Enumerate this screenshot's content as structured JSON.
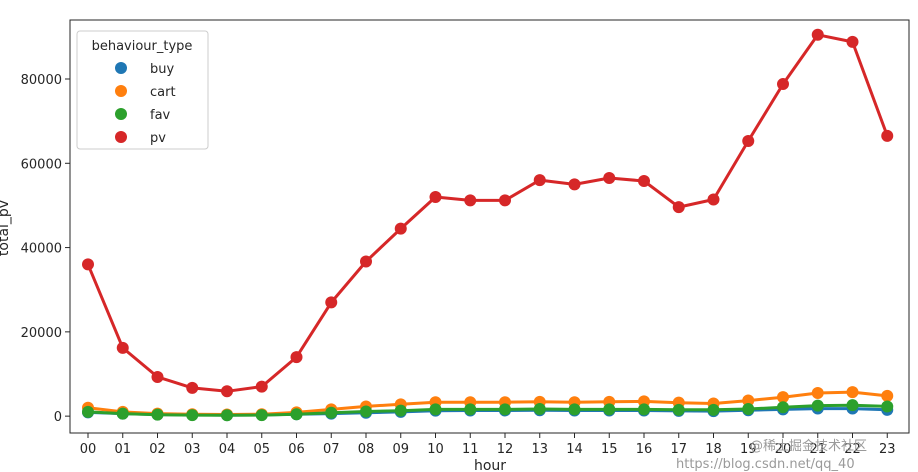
{
  "chart_data": {
    "type": "line",
    "xlabel": "hour",
    "ylabel": "total_pv",
    "ylim": [
      -4000,
      94000
    ],
    "yticks": [
      0,
      20000,
      40000,
      60000,
      80000
    ],
    "grid": false,
    "legend_position": "top-left",
    "legend_title": "behaviour_type",
    "categories": [
      "00",
      "01",
      "02",
      "03",
      "04",
      "05",
      "06",
      "07",
      "08",
      "09",
      "10",
      "11",
      "12",
      "13",
      "14",
      "15",
      "16",
      "17",
      "18",
      "19",
      "20",
      "21",
      "22",
      "23"
    ],
    "series": [
      {
        "name": "buy",
        "color": "#1f77b4",
        "values": [
          900,
          600,
          400,
          300,
          250,
          300,
          450,
          600,
          800,
          1000,
          1300,
          1350,
          1350,
          1400,
          1350,
          1350,
          1350,
          1250,
          1200,
          1400,
          1600,
          1800,
          1800,
          1500
        ]
      },
      {
        "name": "cart",
        "color": "#ff7f0e",
        "values": [
          2000,
          1000,
          600,
          450,
          400,
          450,
          900,
          1600,
          2300,
          2800,
          3300,
          3300,
          3300,
          3400,
          3300,
          3400,
          3500,
          3200,
          3000,
          3700,
          4500,
          5500,
          5700,
          4800
        ]
      },
      {
        "name": "fav",
        "color": "#2ca02c",
        "values": [
          1000,
          600,
          350,
          250,
          200,
          250,
          450,
          800,
          1100,
          1300,
          1600,
          1600,
          1600,
          1700,
          1600,
          1600,
          1600,
          1500,
          1500,
          1700,
          2100,
          2500,
          2600,
          2300
        ]
      },
      {
        "name": "pv",
        "color": "#d62728",
        "values": [
          36000,
          16200,
          9300,
          6700,
          5900,
          7000,
          14000,
          27000,
          36700,
          44500,
          52000,
          51200,
          51200,
          56000,
          55000,
          56500,
          55800,
          49600,
          51400,
          65300,
          78800,
          90500,
          88800,
          66500
        ]
      }
    ]
  },
  "watermark": {
    "line1": "@稀土掘金技术社区",
    "line2": "https://blog.csdn.net/qq_40"
  }
}
